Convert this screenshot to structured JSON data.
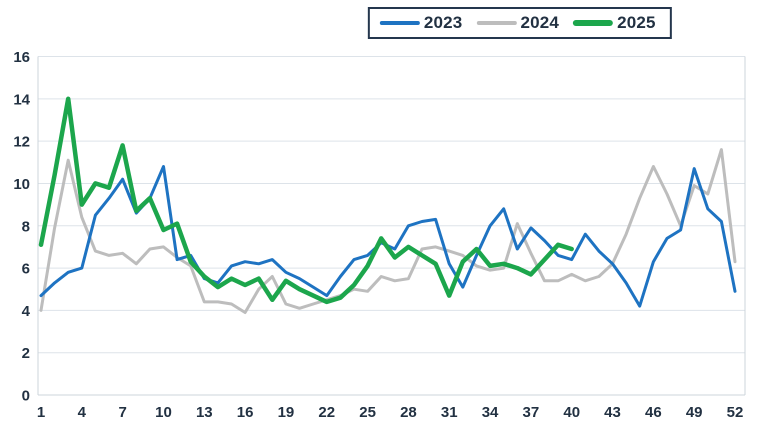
{
  "colors": {
    "series_2023": "#1E73C2",
    "series_2024": "#BDBDBD",
    "series_2025": "#1CA64C",
    "axis_text": "#223142",
    "gridline": "#dde3e9",
    "plot_border": "#ccd4db",
    "legend_border": "#24364d",
    "background": "#ffffff"
  },
  "legend": {
    "position": "top-center",
    "items": [
      {
        "label": "2023"
      },
      {
        "label": "2024"
      },
      {
        "label": "2025"
      }
    ]
  },
  "chart_data": {
    "type": "line",
    "title": "",
    "xlabel": "",
    "ylabel": "",
    "x": [
      1,
      2,
      3,
      4,
      5,
      6,
      7,
      8,
      9,
      10,
      11,
      12,
      13,
      14,
      15,
      16,
      17,
      18,
      19,
      20,
      21,
      22,
      23,
      24,
      25,
      26,
      27,
      28,
      29,
      30,
      31,
      32,
      33,
      34,
      35,
      36,
      37,
      38,
      39,
      40,
      41,
      42,
      43,
      44,
      45,
      46,
      47,
      48,
      49,
      50,
      51,
      52
    ],
    "xticks": [
      1,
      4,
      7,
      10,
      13,
      16,
      19,
      22,
      25,
      28,
      31,
      34,
      37,
      40,
      43,
      46,
      49,
      52
    ],
    "ylim": [
      0,
      16
    ],
    "ytick_step": 2,
    "grid": true,
    "legend_position": "top-center",
    "series": [
      {
        "name": "2023",
        "color": "#1E73C2",
        "stroke_width": 3,
        "values": [
          4.7,
          5.3,
          5.8,
          6.0,
          8.5,
          9.3,
          10.2,
          8.6,
          9.3,
          10.8,
          6.4,
          6.6,
          5.5,
          5.3,
          6.1,
          6.3,
          6.2,
          6.4,
          5.8,
          5.5,
          5.1,
          4.7,
          5.6,
          6.4,
          6.6,
          7.2,
          6.9,
          8.0,
          8.2,
          8.3,
          6.2,
          5.1,
          6.6,
          8.0,
          8.8,
          6.9,
          7.9,
          7.3,
          6.6,
          6.4,
          7.6,
          6.8,
          6.2,
          5.3,
          4.2,
          6.3,
          7.4,
          7.8,
          10.7,
          8.8,
          8.2,
          4.9
        ]
      },
      {
        "name": "2024",
        "color": "#BDBDBD",
        "stroke_width": 3,
        "values": [
          4.0,
          7.9,
          11.1,
          8.4,
          6.8,
          6.6,
          6.7,
          6.2,
          6.9,
          7.0,
          6.5,
          6.1,
          4.4,
          4.4,
          4.3,
          3.9,
          5.0,
          5.6,
          4.3,
          4.1,
          4.3,
          4.5,
          4.7,
          5.0,
          4.9,
          5.6,
          5.4,
          5.5,
          6.9,
          7.0,
          6.8,
          6.6,
          6.1,
          5.9,
          6.0,
          8.1,
          6.7,
          5.4,
          5.4,
          5.7,
          5.4,
          5.6,
          6.2,
          7.6,
          9.3,
          10.8,
          9.5,
          8.0,
          9.9,
          9.5,
          11.6,
          6.3
        ]
      },
      {
        "name": "2025",
        "color": "#1CA64C",
        "stroke_width": 4.5,
        "values": [
          7.1,
          10.4,
          14.0,
          9.0,
          10.0,
          9.8,
          11.8,
          8.7,
          9.3,
          7.8,
          8.1,
          6.3,
          5.6,
          5.1,
          5.5,
          5.2,
          5.5,
          4.5,
          5.4,
          5.0,
          4.7,
          4.4,
          4.6,
          5.2,
          6.1,
          7.4,
          6.5,
          7.0,
          6.6,
          6.2,
          4.7,
          6.3,
          6.9,
          6.1,
          6.2,
          6.0,
          5.7,
          6.4,
          7.1,
          6.9,
          null,
          null,
          null,
          null,
          null,
          null,
          null,
          null,
          null,
          null,
          null,
          null
        ]
      }
    ]
  }
}
